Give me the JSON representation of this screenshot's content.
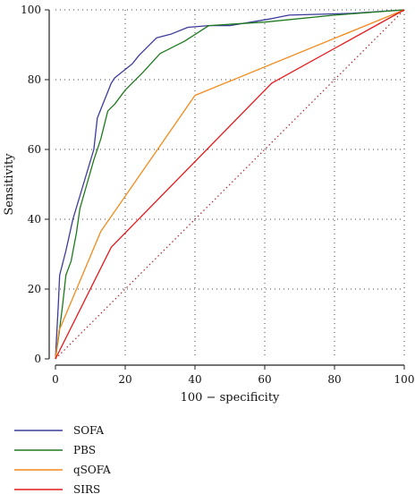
{
  "chart_data": {
    "type": "line",
    "xlabel": "100 − specificity",
    "ylabel": "Sensitivity",
    "xlim": [
      0,
      100
    ],
    "ylim": [
      0,
      100
    ],
    "xticks": [
      0,
      20,
      40,
      60,
      80,
      100
    ],
    "yticks": [
      0,
      20,
      40,
      60,
      80,
      100
    ],
    "grid": true,
    "legend_position": "bottom-left",
    "reference_line": {
      "style": "dotted",
      "color": "#a52a2a",
      "points": [
        [
          0,
          0
        ],
        [
          100,
          100
        ]
      ]
    },
    "series": [
      {
        "name": "SOFA",
        "color": "#3b3b9a",
        "points": [
          [
            0,
            0
          ],
          [
            0.3,
            6
          ],
          [
            0.8,
            15
          ],
          [
            1.2,
            24
          ],
          [
            3,
            31
          ],
          [
            5,
            40
          ],
          [
            8,
            50
          ],
          [
            11,
            60
          ],
          [
            12,
            69
          ],
          [
            16,
            79
          ],
          [
            17,
            80.5
          ],
          [
            22,
            84.5
          ],
          [
            24,
            87
          ],
          [
            29,
            92
          ],
          [
            33,
            93
          ],
          [
            38,
            95
          ],
          [
            44,
            95.5
          ],
          [
            50,
            95.5
          ],
          [
            62,
            97.5
          ],
          [
            67,
            98.5
          ],
          [
            85,
            99
          ],
          [
            100,
            100
          ]
        ]
      },
      {
        "name": "PBS",
        "color": "#1e7a1e",
        "points": [
          [
            0,
            0
          ],
          [
            1,
            7
          ],
          [
            2,
            15
          ],
          [
            3,
            24
          ],
          [
            4.5,
            28
          ],
          [
            6,
            36
          ],
          [
            7,
            43
          ],
          [
            9,
            50
          ],
          [
            11,
            57
          ],
          [
            13,
            63
          ],
          [
            15,
            71
          ],
          [
            17,
            73
          ],
          [
            20,
            77
          ],
          [
            25,
            82
          ],
          [
            30,
            87.5
          ],
          [
            37,
            91
          ],
          [
            44,
            95.5
          ],
          [
            60,
            96.5
          ],
          [
            80,
            98.5
          ],
          [
            100,
            100
          ]
        ]
      },
      {
        "name": "qSOFA",
        "color": "#f28a1b",
        "points": [
          [
            0,
            0
          ],
          [
            1,
            8
          ],
          [
            13,
            36.5
          ],
          [
            40,
            75.5
          ],
          [
            100,
            100
          ]
        ]
      },
      {
        "name": "SIRS",
        "color": "#e31a1a",
        "points": [
          [
            0,
            0
          ],
          [
            16,
            32
          ],
          [
            62,
            79
          ],
          [
            100,
            100
          ]
        ]
      }
    ]
  }
}
